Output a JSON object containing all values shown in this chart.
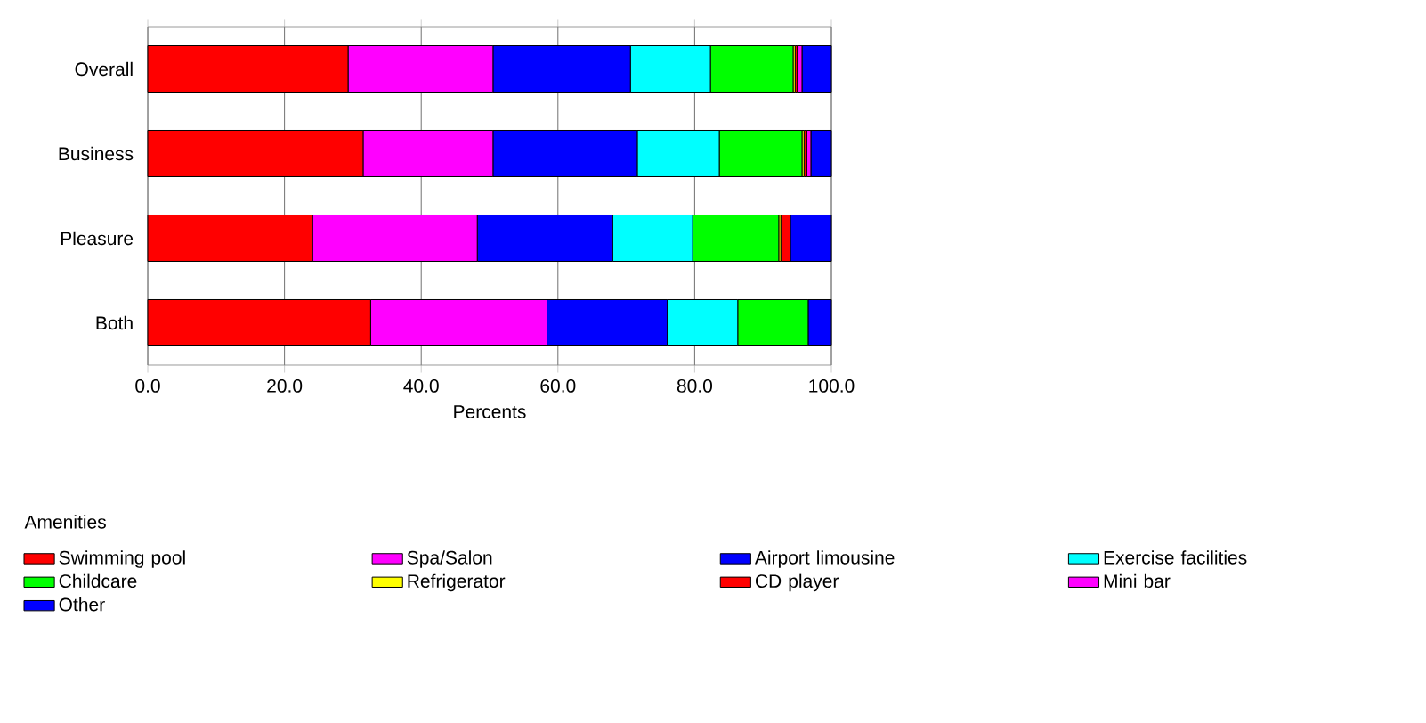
{
  "chart_data": {
    "type": "bar",
    "orientation": "horizontal",
    "stacked": true,
    "xlabel": "Percents",
    "legend_title": "Amenities",
    "legend": "bottom",
    "grid": "x",
    "categories": [
      "Overall",
      "Business",
      "Pleasure",
      "Both"
    ],
    "xlim": [
      0,
      100
    ],
    "xticks": [
      {
        "value": 0,
        "label": "0.0"
      },
      {
        "value": 20,
        "label": "20.0"
      },
      {
        "value": 40,
        "label": "40.0"
      },
      {
        "value": 60,
        "label": "60.0"
      },
      {
        "value": 80,
        "label": "80.0"
      },
      {
        "value": 100,
        "label": "100.0"
      }
    ],
    "series": [
      {
        "name": "Swimming pool",
        "color": "#ff0000",
        "values": [
          29.3,
          31.5,
          24.1,
          32.6
        ]
      },
      {
        "name": "Spa/Salon",
        "color": "#ff00ff",
        "values": [
          21.2,
          19.0,
          24.1,
          25.8
        ]
      },
      {
        "name": "Airport limousine",
        "color": "#0000ff",
        "values": [
          20.1,
          21.1,
          19.8,
          17.6
        ]
      },
      {
        "name": "Exercise facilities",
        "color": "#00ffff",
        "values": [
          11.7,
          12.0,
          11.7,
          10.3
        ]
      },
      {
        "name": "Childcare",
        "color": "#00ff00",
        "values": [
          12.1,
          12.1,
          12.6,
          10.3
        ]
      },
      {
        "name": "Refrigerator",
        "color": "#ffff00",
        "values": [
          0.3,
          0.3,
          0.3,
          0
        ]
      },
      {
        "name": "CD player",
        "color": "#ff0000",
        "values": [
          0.3,
          0.4,
          1.4,
          0
        ]
      },
      {
        "name": "Mini bar",
        "color": "#ff00ff",
        "values": [
          0.7,
          0.6,
          0,
          0
        ]
      },
      {
        "name": "Other",
        "color": "#0000ff",
        "values": [
          4.3,
          3.0,
          6.0,
          3.4
        ]
      }
    ]
  }
}
